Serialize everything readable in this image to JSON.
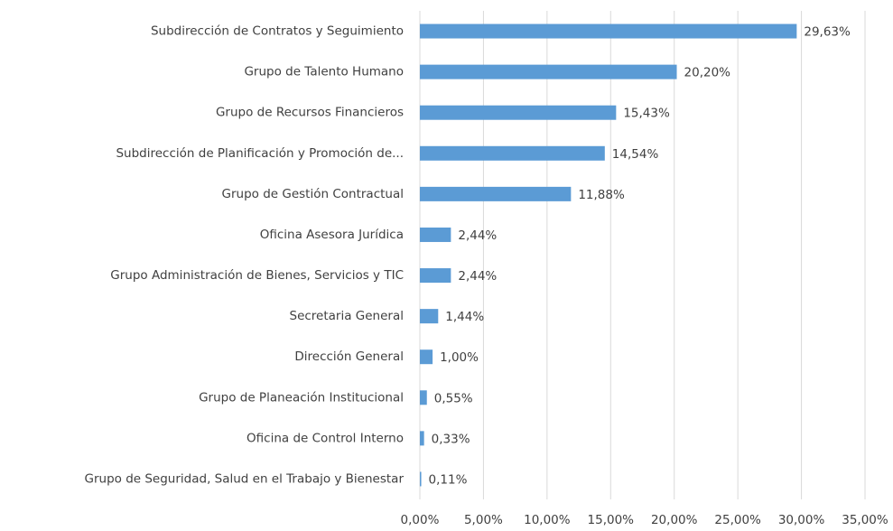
{
  "chart_data": {
    "type": "barh",
    "categories": [
      "Subdirección de Contratos y Seguimiento",
      "Grupo de Talento Humano",
      "Grupo de Recursos Financieros",
      "Subdirección de Planificación y Promoción de...",
      "Grupo de Gestión Contractual",
      "Oficina Asesora Jurídica",
      "Grupo Administración de Bienes, Servicios y TIC",
      "Secretaria General",
      "Dirección General",
      "Grupo de Planeación Institucional",
      "Oficina de Control Interno",
      "Grupo de Seguridad, Salud en el Trabajo y Bienestar"
    ],
    "values": [
      29.63,
      20.2,
      15.43,
      14.54,
      11.88,
      2.44,
      2.44,
      1.44,
      1.0,
      0.55,
      0.33,
      0.11
    ],
    "value_labels": [
      "29,63%",
      "20,20%",
      "15,43%",
      "14,54%",
      "11,88%",
      "2,44%",
      "2,44%",
      "1,44%",
      "1,00%",
      "0,55%",
      "0,33%",
      "0,11%"
    ],
    "color": "#5b9bd5",
    "xlim": [
      0,
      35
    ],
    "xticks": [
      {
        "value": 0,
        "label": "0,00%"
      },
      {
        "value": 5,
        "label": "5,00%"
      },
      {
        "value": 10,
        "label": "10,00%"
      },
      {
        "value": 15,
        "label": "15,00%"
      },
      {
        "value": 20,
        "label": "20,00%"
      },
      {
        "value": 25,
        "label": "25,00%"
      },
      {
        "value": 30,
        "label": "30,00%"
      },
      {
        "value": 35,
        "label": "35,00%"
      }
    ],
    "grid": true
  }
}
